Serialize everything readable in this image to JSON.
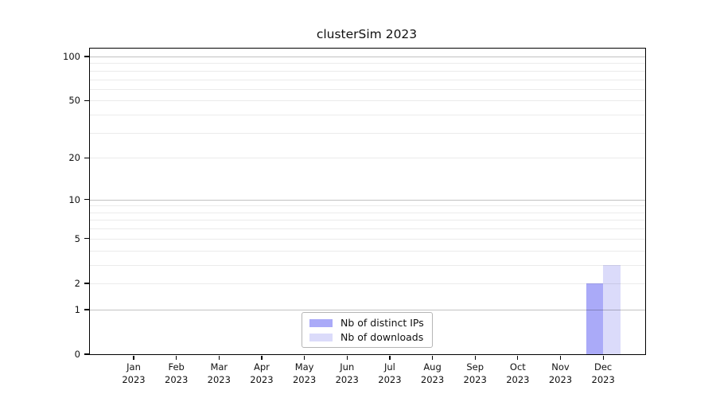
{
  "chart_data": {
    "type": "bar",
    "title": "clusterSim 2023",
    "categories": [
      "Jan 2023",
      "Feb 2023",
      "Mar 2023",
      "Apr 2023",
      "May 2023",
      "Jun 2023",
      "Jul 2023",
      "Aug 2023",
      "Sep 2023",
      "Oct 2023",
      "Nov 2023",
      "Dec 2023"
    ],
    "series": [
      {
        "name": "Nb of distinct IPs",
        "color": "#aaaaf8",
        "values": [
          0,
          0,
          0,
          0,
          0,
          0,
          0,
          0,
          0,
          0,
          0,
          2
        ]
      },
      {
        "name": "Nb of downloads",
        "color": "#dbdbfa",
        "values": [
          0,
          0,
          0,
          0,
          0,
          0,
          0,
          0,
          0,
          0,
          0,
          3
        ]
      }
    ],
    "yscale": "log1p",
    "ylim": [
      0,
      100
    ],
    "ytick_values": [
      0,
      1,
      2,
      5,
      10,
      20,
      50,
      100
    ],
    "y_major_gridlines": [
      1,
      10,
      100
    ],
    "y_minor_gridlines": [
      2,
      3,
      4,
      5,
      6,
      7,
      8,
      9,
      20,
      30,
      40,
      50,
      60,
      70,
      80,
      90
    ],
    "grid": true,
    "legend_position": "bottom-center",
    "xlabel": "",
    "ylabel": ""
  },
  "colors": {
    "bar_distinct_ips": "#aaaaf8",
    "bar_downloads": "#dbdbfa",
    "grid_major": "#c6c6c6",
    "grid_minor": "#ebebeb",
    "axis": "#000000",
    "background": "#ffffff"
  }
}
